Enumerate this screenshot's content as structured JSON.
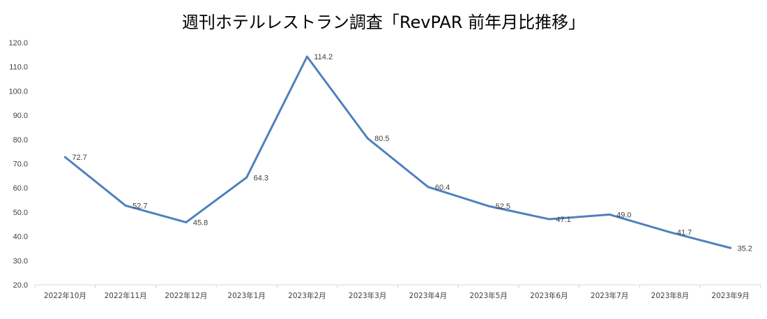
{
  "chart_data": {
    "type": "line",
    "title": "週刊ホテルレストラン調査「RevPAR 前年月比推移」",
    "categories": [
      "2022年10月",
      "2022年11月",
      "2022年12月",
      "2023年1月",
      "2023年2月",
      "2023年3月",
      "2023年4月",
      "2023年5月",
      "2023年6月",
      "2023年7月",
      "2023年8月",
      "2023年9月"
    ],
    "series": [
      {
        "values": [
          72.7,
          52.7,
          45.8,
          64.3,
          114.2,
          80.5,
          60.4,
          52.5,
          47.1,
          49.0,
          41.7,
          35.2
        ],
        "labels": [
          "72.7",
          "52.7",
          "45.8",
          "64.3",
          "114.2",
          "80.5",
          "60.4",
          "52.5",
          "47.1",
          "49.0",
          "41.7",
          "35.2"
        ],
        "color": "#4f81bd"
      }
    ],
    "yticks": [
      "20.0",
      "30.0",
      "40.0",
      "50.0",
      "60.0",
      "70.0",
      "80.0",
      "90.0",
      "100.0",
      "110.0",
      "120.0"
    ],
    "ylim": [
      20,
      120
    ],
    "grid": false,
    "legend": "none"
  }
}
